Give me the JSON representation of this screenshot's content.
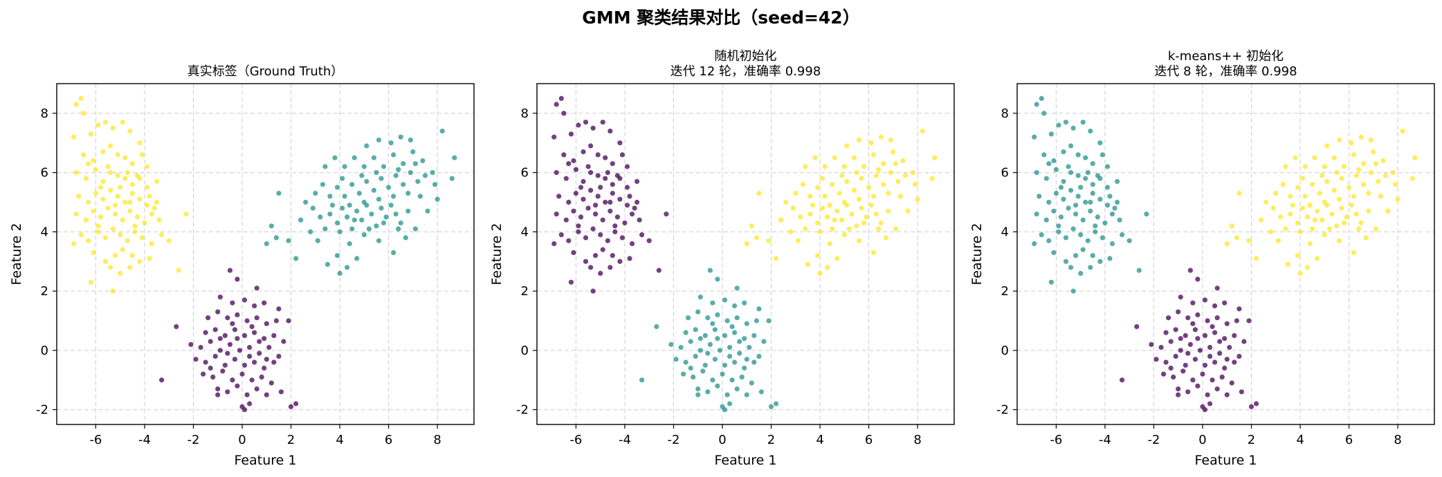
{
  "figure": {
    "suptitle": "GMM 聚类结果对比（seed=42）",
    "colors": {
      "purple": "#440154",
      "teal": "#21918c",
      "yellow": "#fde725",
      "grid": "#cccccc",
      "frame": "#000000"
    }
  },
  "chart_data": [
    {
      "type": "scatter",
      "title_lines": [
        "真实标签（Ground Truth）"
      ],
      "xlabel": "Feature 1",
      "ylabel": "Feature 2",
      "xlim": [
        -7.6,
        9.5
      ],
      "ylim": [
        -2.5,
        9.0
      ],
      "xticks": [
        -6,
        -4,
        -2,
        0,
        2,
        4,
        6,
        8
      ],
      "yticks": [
        -2,
        0,
        2,
        4,
        6,
        8
      ],
      "xtick_labels": [
        "-6",
        "-4",
        "-2",
        "0",
        "2",
        "4",
        "6",
        "8"
      ],
      "ytick_labels": [
        "-2",
        "0",
        "2",
        "4",
        "6",
        "8"
      ],
      "grid": true,
      "cluster_colors": {
        "A": "#fde725",
        "B": "#440154",
        "C": "#21918c"
      }
    },
    {
      "type": "scatter",
      "title_lines": [
        "随机初始化",
        "迭代 12 轮，准确率 0.998"
      ],
      "xlabel": "Feature 1",
      "ylabel": "Feature 2",
      "xlim": [
        -7.6,
        9.5
      ],
      "ylim": [
        -2.5,
        9.0
      ],
      "xticks": [
        -6,
        -4,
        -2,
        0,
        2,
        4,
        6,
        8
      ],
      "yticks": [
        -2,
        0,
        2,
        4,
        6,
        8
      ],
      "xtick_labels": [
        "-6",
        "-4",
        "-2",
        "0",
        "2",
        "4",
        "6",
        "8"
      ],
      "ytick_labels": [
        "-2",
        "0",
        "2",
        "4",
        "6",
        "8"
      ],
      "grid": true,
      "cluster_colors": {
        "A": "#440154",
        "B": "#21918c",
        "C": "#fde725"
      }
    },
    {
      "type": "scatter",
      "title_lines": [
        "k-means++ 初始化",
        "迭代 8 轮，准确率 0.998"
      ],
      "xlabel": "Feature 1",
      "ylabel": "Feature 2",
      "xlim": [
        -7.6,
        9.5
      ],
      "ylim": [
        -2.5,
        9.0
      ],
      "xticks": [
        -6,
        -4,
        -2,
        0,
        2,
        4,
        6,
        8
      ],
      "yticks": [
        -2,
        0,
        2,
        4,
        6,
        8
      ],
      "xtick_labels": [
        "-6",
        "-4",
        "-2",
        "0",
        "2",
        "4",
        "6",
        "8"
      ],
      "ytick_labels": [
        "-2",
        "0",
        "2",
        "4",
        "6",
        "8"
      ],
      "grid": true,
      "cluster_colors": {
        "A": "#21918c",
        "B": "#440154",
        "C": "#fde725"
      }
    }
  ],
  "clusters": {
    "A": [
      [
        -6.8,
        8.3
      ],
      [
        -6.6,
        8.5
      ],
      [
        -6.5,
        8.0
      ],
      [
        -6.9,
        7.2
      ],
      [
        -6.2,
        7.3
      ],
      [
        -5.9,
        7.6
      ],
      [
        -5.6,
        7.7
      ],
      [
        -5.3,
        7.5
      ],
      [
        -4.9,
        7.7
      ],
      [
        -4.6,
        7.4
      ],
      [
        -4.2,
        7.0
      ],
      [
        -6.5,
        6.6
      ],
      [
        -6.1,
        6.4
      ],
      [
        -5.7,
        6.7
      ],
      [
        -5.4,
        6.9
      ],
      [
        -5.1,
        6.6
      ],
      [
        -4.8,
        6.5
      ],
      [
        -4.5,
        6.3
      ],
      [
        -4.1,
        6.6
      ],
      [
        -3.9,
        6.2
      ],
      [
        -6.8,
        6.0
      ],
      [
        -6.4,
        5.8
      ],
      [
        -6.0,
        6.1
      ],
      [
        -5.7,
        5.7
      ],
      [
        -5.4,
        6.0
      ],
      [
        -5.1,
        5.9
      ],
      [
        -4.8,
        5.8
      ],
      [
        -4.5,
        5.6
      ],
      [
        -4.2,
        5.8
      ],
      [
        -3.9,
        5.5
      ],
      [
        -3.5,
        5.7
      ],
      [
        -6.7,
        5.2
      ],
      [
        -6.3,
        5.0
      ],
      [
        -6.0,
        5.3
      ],
      [
        -5.7,
        5.1
      ],
      [
        -5.4,
        5.4
      ],
      [
        -5.1,
        5.2
      ],
      [
        -4.8,
        5.0
      ],
      [
        -4.5,
        5.3
      ],
      [
        -4.2,
        5.1
      ],
      [
        -3.9,
        4.9
      ],
      [
        -3.5,
        5.0
      ],
      [
        -6.8,
        4.6
      ],
      [
        -6.4,
        4.4
      ],
      [
        -6.1,
        4.7
      ],
      [
        -5.8,
        4.5
      ],
      [
        -5.5,
        4.8
      ],
      [
        -5.2,
        4.6
      ],
      [
        -4.9,
        4.4
      ],
      [
        -4.6,
        4.7
      ],
      [
        -4.3,
        4.5
      ],
      [
        -4.0,
        4.3
      ],
      [
        -3.7,
        4.6
      ],
      [
        -3.4,
        4.4
      ],
      [
        -6.6,
        3.9
      ],
      [
        -6.3,
        3.7
      ],
      [
        -5.9,
        4.0
      ],
      [
        -5.6,
        3.8
      ],
      [
        -5.3,
        4.1
      ],
      [
        -5.0,
        3.9
      ],
      [
        -4.7,
        3.7
      ],
      [
        -4.4,
        4.0
      ],
      [
        -4.1,
        3.8
      ],
      [
        -3.7,
        3.6
      ],
      [
        -3.3,
        3.9
      ],
      [
        -3.0,
        3.7
      ],
      [
        -6.9,
        3.6
      ],
      [
        -6.1,
        3.3
      ],
      [
        -5.6,
        3.0
      ],
      [
        -5.2,
        3.2
      ],
      [
        -4.9,
        3.4
      ],
      [
        -4.5,
        3.2
      ],
      [
        -4.2,
        3.0
      ],
      [
        -3.8,
        3.1
      ],
      [
        -5.4,
        2.8
      ],
      [
        -5.0,
        2.6
      ],
      [
        -4.6,
        2.8
      ],
      [
        -6.2,
        2.3
      ],
      [
        -5.3,
        2.0
      ],
      [
        -2.6,
        2.7
      ],
      [
        -2.3,
        4.6
      ],
      [
        -6.3,
        6.3
      ],
      [
        -5.5,
        6.2
      ],
      [
        -5.0,
        5.5
      ],
      [
        -4.3,
        5.9
      ],
      [
        -5.8,
        5.5
      ],
      [
        -4.6,
        5.0
      ],
      [
        -5.2,
        4.9
      ],
      [
        -4.4,
        4.2
      ],
      [
        -5.9,
        4.2
      ],
      [
        -4.7,
        6.0
      ],
      [
        -3.8,
        5.2
      ],
      [
        -3.6,
        4.8
      ]
    ],
    "B": [
      [
        -0.5,
        2.7
      ],
      [
        -0.2,
        2.4
      ],
      [
        0.6,
        2.1
      ],
      [
        -0.9,
        1.8
      ],
      [
        -0.4,
        1.6
      ],
      [
        0.1,
        1.7
      ],
      [
        0.5,
        1.5
      ],
      [
        0.9,
        1.6
      ],
      [
        1.5,
        1.4
      ],
      [
        1.9,
        1.0
      ],
      [
        -1.4,
        1.1
      ],
      [
        -1.0,
        1.3
      ],
      [
        -0.6,
        1.1
      ],
      [
        -0.2,
        1.2
      ],
      [
        0.2,
        1.0
      ],
      [
        0.6,
        1.1
      ],
      [
        1.0,
        0.9
      ],
      [
        1.4,
        1.0
      ],
      [
        -2.7,
        0.8
      ],
      [
        -1.5,
        0.6
      ],
      [
        -1.1,
        0.7
      ],
      [
        -0.7,
        0.5
      ],
      [
        -0.3,
        0.7
      ],
      [
        0.1,
        0.5
      ],
      [
        0.5,
        0.6
      ],
      [
        0.9,
        0.4
      ],
      [
        1.3,
        0.5
      ],
      [
        1.7,
        0.3
      ],
      [
        -2.1,
        0.2
      ],
      [
        -1.7,
        0.1
      ],
      [
        -1.3,
        0.3
      ],
      [
        -0.9,
        0.0
      ],
      [
        -0.5,
        0.2
      ],
      [
        -0.1,
        0.0
      ],
      [
        0.3,
        0.1
      ],
      [
        0.7,
        -0.1
      ],
      [
        1.1,
        0.1
      ],
      [
        1.5,
        -0.2
      ],
      [
        -1.9,
        -0.3
      ],
      [
        -1.5,
        -0.4
      ],
      [
        -1.1,
        -0.2
      ],
      [
        -0.7,
        -0.5
      ],
      [
        -0.3,
        -0.3
      ],
      [
        0.1,
        -0.5
      ],
      [
        0.5,
        -0.4
      ],
      [
        0.9,
        -0.6
      ],
      [
        1.3,
        -0.4
      ],
      [
        -1.6,
        -0.8
      ],
      [
        -1.2,
        -0.9
      ],
      [
        -0.8,
        -0.7
      ],
      [
        -0.4,
        -1.0
      ],
      [
        0.0,
        -0.8
      ],
      [
        0.4,
        -1.0
      ],
      [
        0.8,
        -0.9
      ],
      [
        1.2,
        -1.1
      ],
      [
        -1.0,
        -1.3
      ],
      [
        -0.6,
        -1.4
      ],
      [
        -0.2,
        -1.2
      ],
      [
        0.2,
        -1.5
      ],
      [
        0.6,
        -1.3
      ],
      [
        1.0,
        -1.5
      ],
      [
        -3.3,
        -1.0
      ],
      [
        -1.0,
        -1.5
      ],
      [
        1.6,
        -1.4
      ],
      [
        0.0,
        -1.9
      ],
      [
        0.3,
        -1.8
      ],
      [
        0.1,
        -2.0
      ],
      [
        2.0,
        -1.9
      ],
      [
        2.2,
        -1.8
      ],
      [
        -0.2,
        0.4
      ],
      [
        0.3,
        -0.2
      ],
      [
        -0.6,
        -0.1
      ],
      [
        0.7,
        0.3
      ],
      [
        -1.3,
        -0.6
      ],
      [
        1.0,
        -0.3
      ],
      [
        -0.4,
        0.9
      ],
      [
        0.4,
        0.8
      ],
      [
        -0.9,
        0.4
      ]
    ],
    "C": [
      [
        1.2,
        4.2
      ],
      [
        1.4,
        3.8
      ],
      [
        1.0,
        3.6
      ],
      [
        1.9,
        3.7
      ],
      [
        2.2,
        3.1
      ],
      [
        1.5,
        5.3
      ],
      [
        2.6,
        5.0
      ],
      [
        2.9,
        4.8
      ],
      [
        3.2,
        4.5
      ],
      [
        3.4,
        4.1
      ],
      [
        3.6,
        4.6
      ],
      [
        3.9,
        4.3
      ],
      [
        4.1,
        4.8
      ],
      [
        4.3,
        4.5
      ],
      [
        4.5,
        4.1
      ],
      [
        4.7,
        4.7
      ],
      [
        4.9,
        4.4
      ],
      [
        5.1,
        4.9
      ],
      [
        5.3,
        4.6
      ],
      [
        5.5,
        4.2
      ],
      [
        5.7,
        4.8
      ],
      [
        5.9,
        4.5
      ],
      [
        6.1,
        4.9
      ],
      [
        6.3,
        4.6
      ],
      [
        6.5,
        4.3
      ],
      [
        6.8,
        4.7
      ],
      [
        3.0,
        5.3
      ],
      [
        3.3,
        5.6
      ],
      [
        3.6,
        5.2
      ],
      [
        3.9,
        5.5
      ],
      [
        4.2,
        5.2
      ],
      [
        4.5,
        5.6
      ],
      [
        4.8,
        5.3
      ],
      [
        5.1,
        5.7
      ],
      [
        5.4,
        5.4
      ],
      [
        5.7,
        5.8
      ],
      [
        6.0,
        5.5
      ],
      [
        6.3,
        5.9
      ],
      [
        6.6,
        5.6
      ],
      [
        6.9,
        6.0
      ],
      [
        7.2,
        5.7
      ],
      [
        7.5,
        5.9
      ],
      [
        3.4,
        6.2
      ],
      [
        3.8,
        6.5
      ],
      [
        4.2,
        6.2
      ],
      [
        4.6,
        6.5
      ],
      [
        5.0,
        6.2
      ],
      [
        5.4,
        6.5
      ],
      [
        5.8,
        6.2
      ],
      [
        6.2,
        6.6
      ],
      [
        6.6,
        6.3
      ],
      [
        7.0,
        6.7
      ],
      [
        7.4,
        6.4
      ],
      [
        7.8,
        6.0
      ],
      [
        5.1,
        6.9
      ],
      [
        5.6,
        7.1
      ],
      [
        6.1,
        7.0
      ],
      [
        6.5,
        7.2
      ],
      [
        6.9,
        7.1
      ],
      [
        8.2,
        7.4
      ],
      [
        8.7,
        6.5
      ],
      [
        8.6,
        5.8
      ],
      [
        8.0,
        5.1
      ],
      [
        7.6,
        4.7
      ],
      [
        7.1,
        4.1
      ],
      [
        6.7,
        3.8
      ],
      [
        6.2,
        3.3
      ],
      [
        5.6,
        3.7
      ],
      [
        5.0,
        3.9
      ],
      [
        4.4,
        3.6
      ],
      [
        3.9,
        3.2
      ],
      [
        3.5,
        2.9
      ],
      [
        4.0,
        2.6
      ],
      [
        4.3,
        2.8
      ],
      [
        4.7,
        3.1
      ],
      [
        2.4,
        4.4
      ],
      [
        2.8,
        4.0
      ],
      [
        3.1,
        3.7
      ],
      [
        4.0,
        4.0
      ],
      [
        4.6,
        4.4
      ],
      [
        5.2,
        4.1
      ],
      [
        5.8,
        4.3
      ],
      [
        6.4,
        4.1
      ],
      [
        3.7,
        4.9
      ],
      [
        4.4,
        4.9
      ],
      [
        5.0,
        5.0
      ],
      [
        5.6,
        5.1
      ],
      [
        6.2,
        5.2
      ],
      [
        6.8,
        5.3
      ],
      [
        7.3,
        5.2
      ],
      [
        4.1,
        5.8
      ],
      [
        4.9,
        5.9
      ],
      [
        5.5,
        6.0
      ],
      [
        6.4,
        6.1
      ],
      [
        7.1,
        6.3
      ],
      [
        7.9,
        5.6
      ]
    ]
  }
}
